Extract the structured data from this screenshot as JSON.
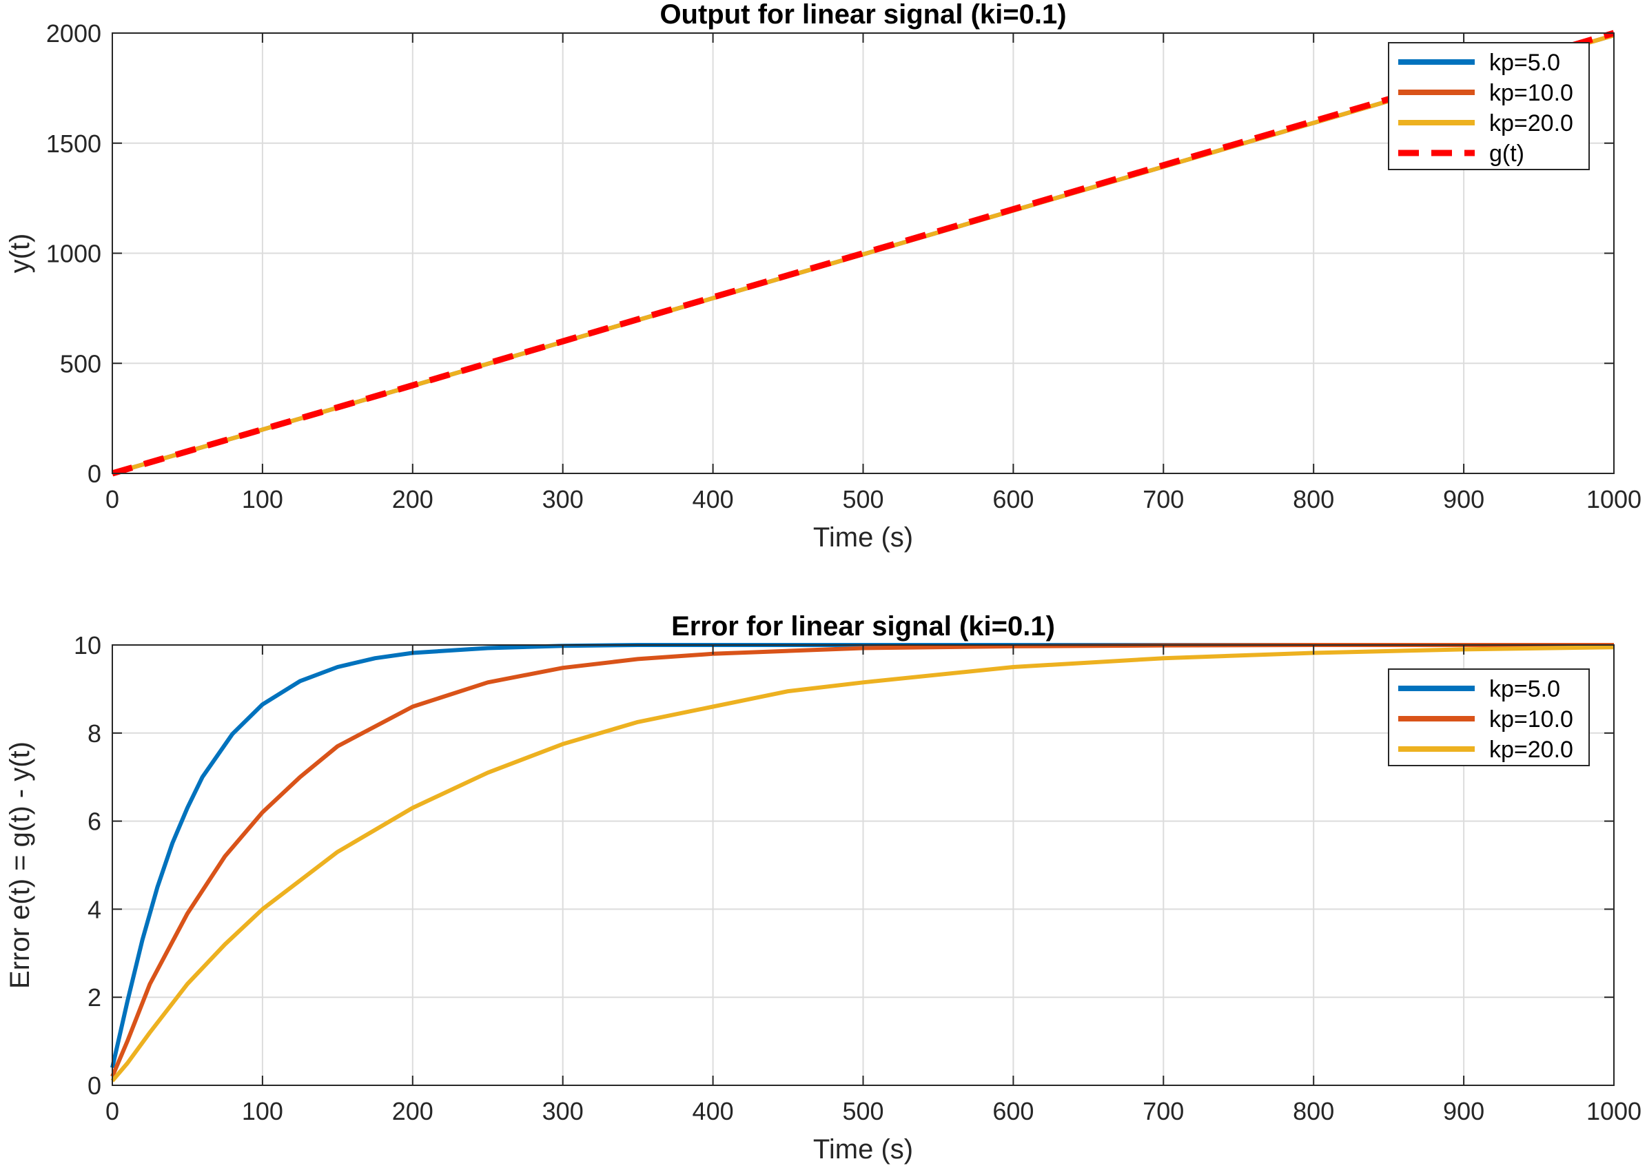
{
  "chart_data": [
    {
      "type": "line",
      "title": "Output for linear signal (ki=0.1)",
      "xlabel": "Time (s)",
      "ylabel": "y(t)",
      "xlim": [
        0,
        1000
      ],
      "ylim": [
        0,
        2000
      ],
      "xticks": [
        0,
        100,
        200,
        300,
        400,
        500,
        600,
        700,
        800,
        900,
        1000
      ],
      "yticks": [
        0,
        500,
        1000,
        1500,
        2000
      ],
      "grid": true,
      "legend_position": "top-right",
      "series": [
        {
          "name": "kp=5.0",
          "color": "#0072BD",
          "style": "solid",
          "x": [
            0,
            1000
          ],
          "y": [
            0,
            1990
          ]
        },
        {
          "name": "kp=10.0",
          "color": "#D95319",
          "style": "solid",
          "x": [
            0,
            1000
          ],
          "y": [
            0,
            1990
          ]
        },
        {
          "name": "kp=20.0",
          "color": "#EDB120",
          "style": "solid",
          "x": [
            0,
            1000
          ],
          "y": [
            0,
            1990
          ]
        },
        {
          "name": "g(t)",
          "color": "#FF0000",
          "style": "dashed",
          "x": [
            0,
            1000
          ],
          "y": [
            0,
            2000
          ]
        }
      ]
    },
    {
      "type": "line",
      "title": "Error for linear signal (ki=0.1)",
      "xlabel": "Time (s)",
      "ylabel": "Error e(t) = g(t) - y(t)",
      "xlim": [
        0,
        1000
      ],
      "ylim": [
        0,
        10
      ],
      "xticks": [
        0,
        100,
        200,
        300,
        400,
        500,
        600,
        700,
        800,
        900,
        1000
      ],
      "yticks": [
        0,
        2,
        4,
        6,
        8,
        10
      ],
      "grid": true,
      "legend_position": "top-right",
      "series": [
        {
          "name": "kp=5.0",
          "color": "#0072BD",
          "style": "solid",
          "x": [
            0,
            10,
            20,
            30,
            40,
            50,
            60,
            80,
            100,
            125,
            150,
            175,
            200,
            250,
            300,
            350,
            400,
            500,
            600,
            700,
            800,
            900,
            1000
          ],
          "y": [
            0.4,
            1.9,
            3.3,
            4.5,
            5.5,
            6.3,
            7.0,
            7.98,
            8.65,
            9.18,
            9.5,
            9.7,
            9.82,
            9.93,
            9.98,
            10.0,
            10.0,
            10.0,
            10.0,
            10.0,
            10.0,
            10.0,
            10.0
          ]
        },
        {
          "name": "kp=10.0",
          "color": "#D95319",
          "style": "solid",
          "x": [
            0,
            10,
            25,
            50,
            75,
            100,
            125,
            150,
            200,
            250,
            300,
            350,
            400,
            500,
            600,
            700,
            800,
            900,
            1000
          ],
          "y": [
            0.2,
            1.0,
            2.3,
            3.9,
            5.2,
            6.2,
            7.0,
            7.7,
            8.6,
            9.15,
            9.48,
            9.68,
            9.8,
            9.93,
            9.97,
            9.99,
            10.0,
            10.0,
            10.0
          ]
        },
        {
          "name": "kp=20.0",
          "color": "#EDB120",
          "style": "solid",
          "x": [
            0,
            10,
            25,
            50,
            75,
            100,
            150,
            200,
            250,
            300,
            350,
            400,
            450,
            500,
            600,
            700,
            800,
            900,
            1000
          ],
          "y": [
            0.1,
            0.5,
            1.2,
            2.3,
            3.2,
            4.0,
            5.3,
            6.3,
            7.1,
            7.75,
            8.25,
            8.6,
            8.95,
            9.15,
            9.5,
            9.7,
            9.82,
            9.9,
            9.95
          ]
        }
      ]
    }
  ]
}
